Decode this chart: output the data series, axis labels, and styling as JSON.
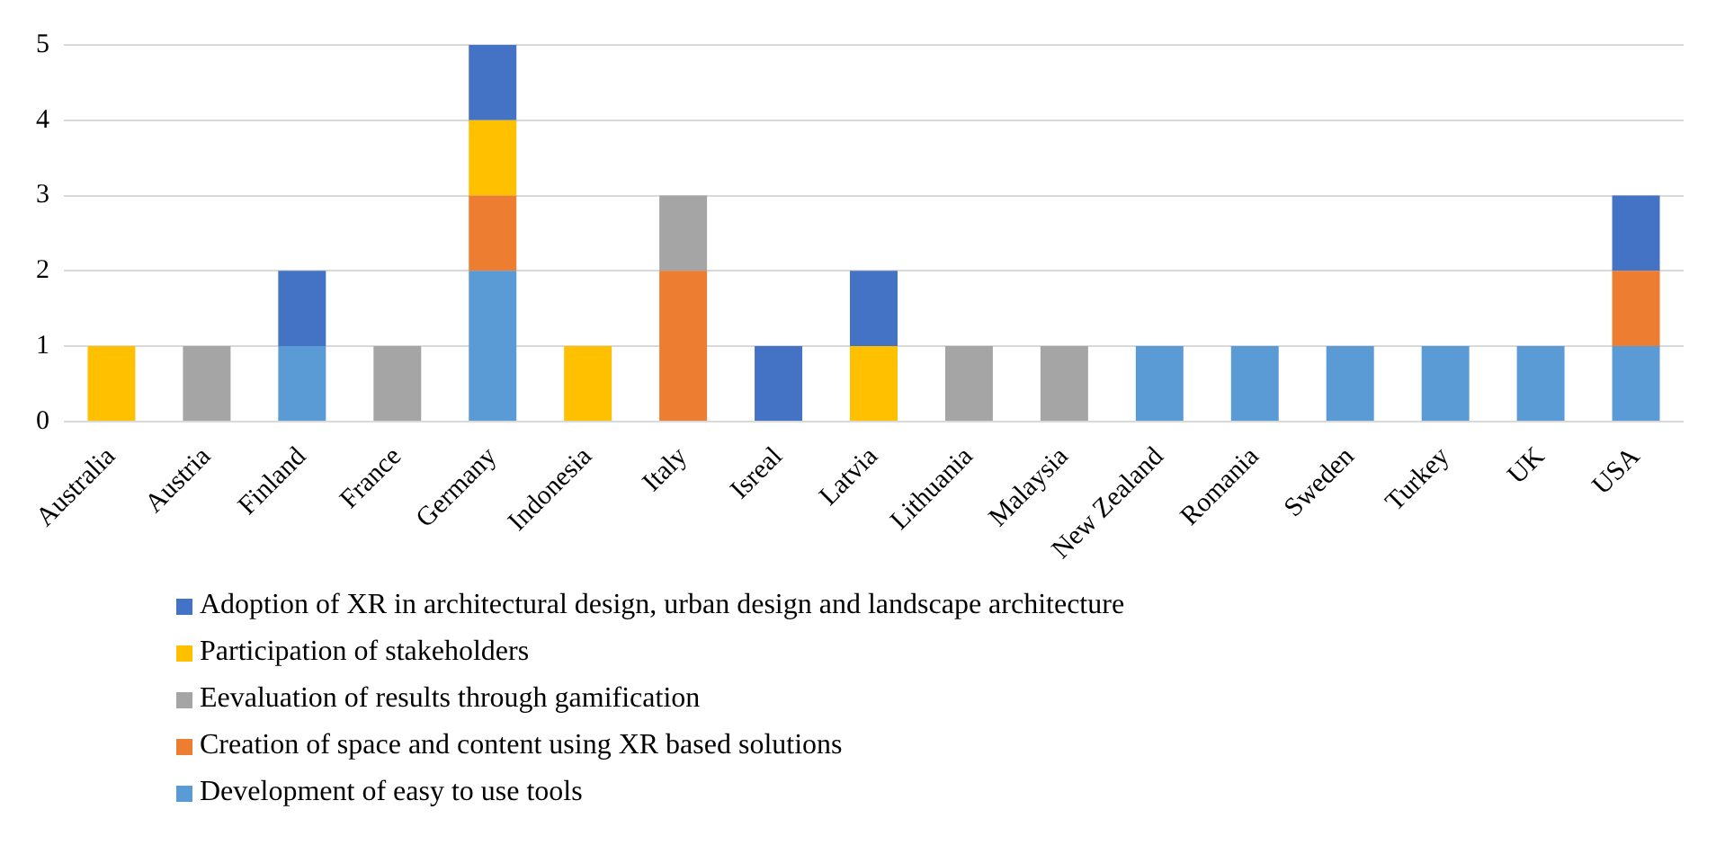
{
  "chart_data": {
    "type": "bar",
    "stacked": true,
    "categories": [
      "Australia",
      "Austria",
      "Finland",
      "France",
      "Germany",
      "Indonesia",
      "Italy",
      "Isreal",
      "Latvia",
      "Lithuania",
      "Malaysia",
      "New Zealand",
      "Romania",
      "Sweden",
      "Turkey",
      "UK",
      "USA"
    ],
    "series": [
      {
        "name": "Development of easy to use tools",
        "color": "#5b9bd5",
        "values": [
          null,
          null,
          1,
          null,
          2,
          null,
          null,
          null,
          null,
          null,
          null,
          1,
          1,
          1,
          1,
          1,
          1
        ]
      },
      {
        "name": "Creation of space and content using XR based solutions",
        "color": "#ed7d31",
        "values": [
          null,
          null,
          null,
          null,
          1,
          null,
          2,
          null,
          null,
          null,
          null,
          null,
          null,
          null,
          null,
          null,
          1
        ]
      },
      {
        "name": "Eevaluation of results through gamification",
        "color": "#a5a5a5",
        "values": [
          null,
          1,
          null,
          1,
          null,
          null,
          1,
          null,
          null,
          1,
          1,
          null,
          null,
          null,
          null,
          null,
          null
        ]
      },
      {
        "name": "Participation of stakeholders",
        "color": "#ffc000",
        "values": [
          1,
          null,
          null,
          null,
          1,
          1,
          null,
          null,
          1,
          null,
          null,
          null,
          null,
          null,
          null,
          null,
          null
        ]
      },
      {
        "name": "Adoption of XR in architectural design, urban design and landscape architecture",
        "color": "#4472c4",
        "values": [
          null,
          null,
          1,
          null,
          1,
          null,
          null,
          1,
          1,
          null,
          null,
          null,
          null,
          null,
          null,
          null,
          1
        ]
      }
    ],
    "ylim": [
      0,
      5
    ],
    "yticks": [
      0,
      1,
      2,
      3,
      4,
      5
    ],
    "grid": "y",
    "legend": "bottom"
  }
}
